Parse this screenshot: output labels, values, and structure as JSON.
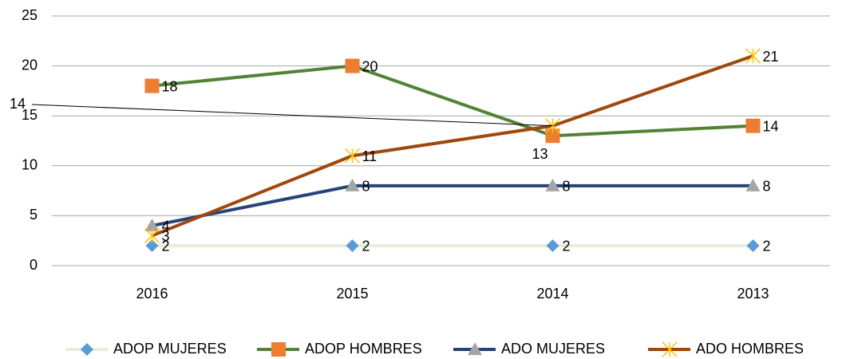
{
  "chart_data": {
    "type": "line",
    "categories": [
      "2016",
      "2015",
      "2014",
      "2013"
    ],
    "series": [
      {
        "name": "ADOP MUJERES",
        "color": "#e2efda",
        "marker": "diamond",
        "marker_color": "#5b9bd5",
        "values": [
          2,
          2,
          2,
          2
        ]
      },
      {
        "name": "ADOP HOMBRES",
        "color": "#548235",
        "marker": "square",
        "marker_color": "#ed7d31",
        "values": [
          18,
          20,
          13,
          14
        ]
      },
      {
        "name": "ADO MUJERES",
        "color": "#264478",
        "marker": "triangle",
        "marker_color": "#a5a5a5",
        "values": [
          4,
          8,
          8,
          8
        ]
      },
      {
        "name": "ADO HOMBRES",
        "color": "#9e480e",
        "marker": "x",
        "marker_color": "#ffc000",
        "values": [
          3,
          11,
          14,
          21
        ]
      }
    ],
    "ylim": [
      0,
      25
    ],
    "yticks": [
      0,
      5,
      10,
      15,
      20,
      25
    ],
    "grid": true,
    "legend": "bottom"
  }
}
